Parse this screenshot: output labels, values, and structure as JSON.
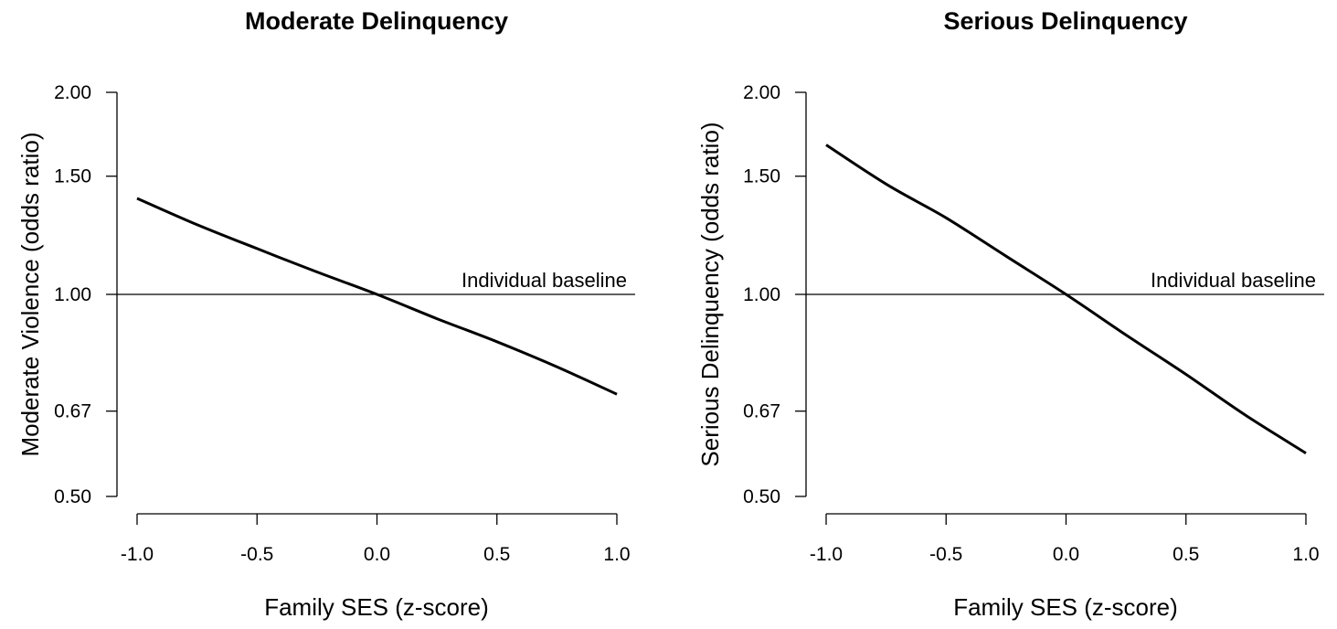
{
  "chart_data": [
    {
      "type": "line",
      "title": "Moderate Delinquency",
      "xlabel": "Family SES (z-score)",
      "ylabel": "Moderate Violence (odds ratio)",
      "xlim": [
        -1.0,
        1.0
      ],
      "ylim": [
        0.5,
        2.0
      ],
      "y_scale": "log",
      "xticks": [
        -1.0,
        -0.5,
        0.0,
        0.5,
        1.0
      ],
      "xtick_labels": [
        "-1.0",
        "-0.5",
        "0.0",
        "0.5",
        "1.0"
      ],
      "yticks": [
        0.5,
        0.67,
        1.0,
        1.5,
        2.0
      ],
      "ytick_labels": [
        "0.50",
        "0.67",
        "1.00",
        "1.50",
        "2.00"
      ],
      "grid": false,
      "reference_line": {
        "y": 1.0,
        "label": "Individual baseline"
      },
      "series": [
        {
          "x": [
            -1.0,
            -0.75,
            -0.5,
            -0.25,
            0.0,
            0.25,
            0.5,
            0.75,
            1.0
          ],
          "y": [
            1.39,
            1.27,
            1.17,
            1.08,
            1.0,
            0.92,
            0.85,
            0.78,
            0.71
          ]
        }
      ]
    },
    {
      "type": "line",
      "title": "Serious Delinquency",
      "xlabel": "Family SES (z-score)",
      "ylabel": "Serious Delinquency (odds ratio)",
      "xlim": [
        -1.0,
        1.0
      ],
      "ylim": [
        0.5,
        2.0
      ],
      "y_scale": "log",
      "xticks": [
        -1.0,
        -0.5,
        0.0,
        0.5,
        1.0
      ],
      "xtick_labels": [
        "-1.0",
        "-0.5",
        "0.0",
        "0.5",
        "1.0"
      ],
      "yticks": [
        0.5,
        0.67,
        1.0,
        1.5,
        2.0
      ],
      "ytick_labels": [
        "0.50",
        "0.67",
        "1.00",
        "1.50",
        "2.00"
      ],
      "grid": false,
      "reference_line": {
        "y": 1.0,
        "label": "Individual baseline"
      },
      "series": [
        {
          "x": [
            -1.0,
            -0.75,
            -0.5,
            -0.25,
            0.0,
            0.25,
            0.5,
            0.75,
            1.0
          ],
          "y": [
            1.67,
            1.46,
            1.3,
            1.14,
            1.0,
            0.87,
            0.76,
            0.66,
            0.58
          ]
        }
      ]
    }
  ]
}
